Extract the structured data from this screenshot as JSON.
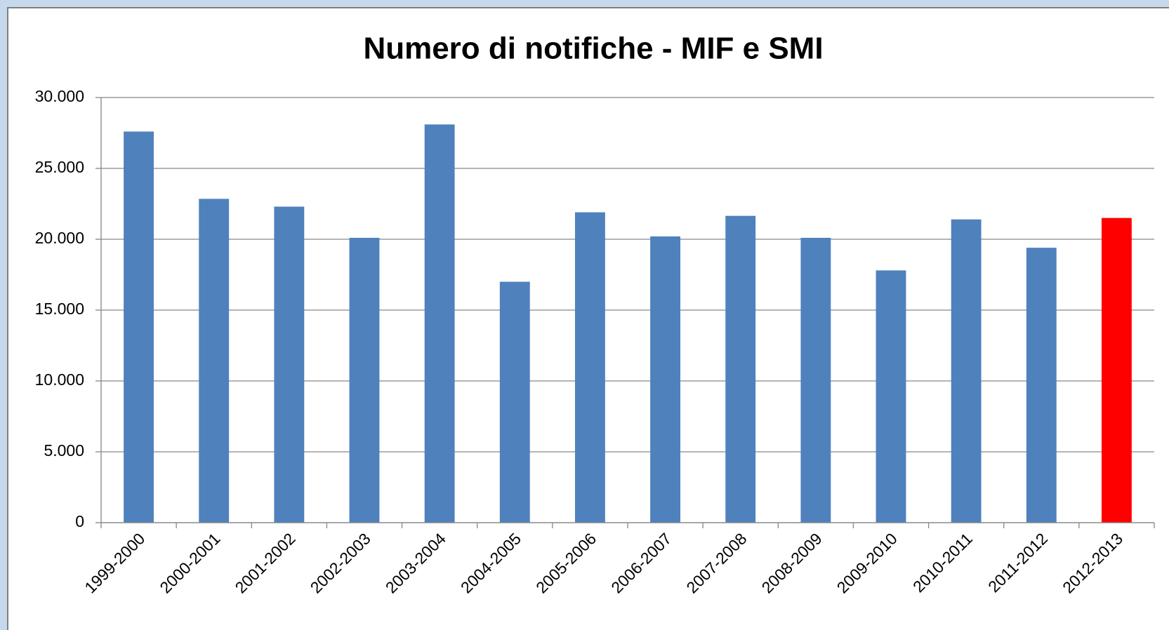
{
  "chart_data": {
    "type": "bar",
    "title": "Numero di notifiche - MIF e SMI",
    "categories": [
      "1999-2000",
      "2000-2001",
      "2001-2002",
      "2002-2003",
      "2003-2004",
      "2004-2005",
      "2005-2006",
      "2006-2007",
      "2007-2008",
      "2008-2009",
      "2009-2010",
      "2010-2011",
      "2011-2012",
      "2012-2013"
    ],
    "values": [
      27600,
      22850,
      22300,
      20100,
      28100,
      17000,
      21900,
      20200,
      21650,
      20100,
      17800,
      21400,
      19400,
      21500
    ],
    "colors": [
      "#4f81bd",
      "#4f81bd",
      "#4f81bd",
      "#4f81bd",
      "#4f81bd",
      "#4f81bd",
      "#4f81bd",
      "#4f81bd",
      "#4f81bd",
      "#4f81bd",
      "#4f81bd",
      "#4f81bd",
      "#4f81bd",
      "#ff0000"
    ],
    "ylim": [
      0,
      30000
    ],
    "yticks": [
      0,
      {
        "value": 5000,
        "label": "5.000"
      },
      {
        "value": 10000,
        "label": "10.000"
      },
      {
        "value": 15000,
        "label": "15.000"
      },
      {
        "value": 20000,
        "label": "20.000"
      },
      {
        "value": 25000,
        "label": "25.000"
      },
      {
        "value": 30000,
        "label": "30.000"
      }
    ],
    "grid": true
  }
}
